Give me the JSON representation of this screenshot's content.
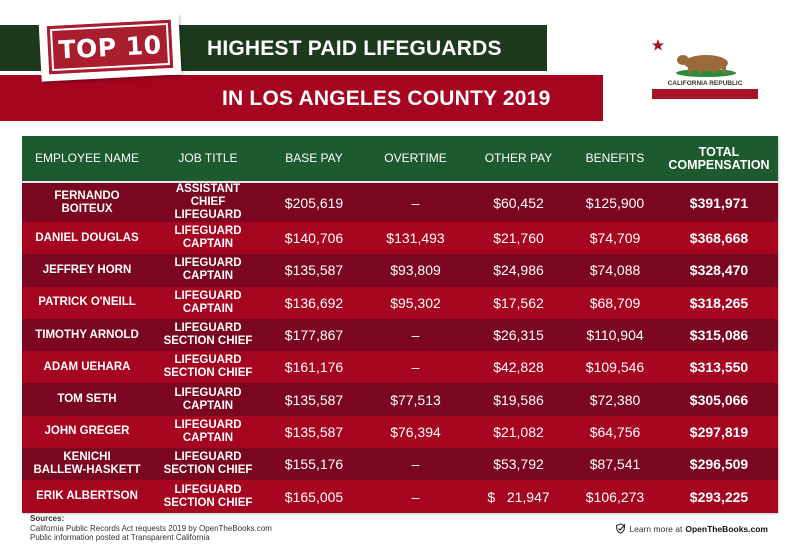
{
  "header": {
    "badge": "TOP 10",
    "title_line1": "HIGHEST PAID LIFEGUARDS",
    "title_line2": "IN LOS ANGELES COUNTY 2019",
    "flag_text": "CALIFORNIA REPUBLIC",
    "flag_icon": "california-flag-icon"
  },
  "colors": {
    "green_banner": "#1d3a1f",
    "red_banner": "#a5051f",
    "table_header": "#1d5b2f",
    "row_dark": "#7a0620",
    "row_light": "#a5051f"
  },
  "table": {
    "columns": [
      "EMPLOYEE NAME",
      "JOB TITLE",
      "BASE PAY",
      "OVERTIME",
      "OTHER PAY",
      "BENEFITS",
      "TOTAL\nCOMPENSATION"
    ],
    "columns_total_line1": "TOTAL",
    "columns_total_line2": "COMPENSATION",
    "rows": [
      {
        "name1": "FERNANDO",
        "name2": "BOITEUX",
        "job1": "ASSISTANT",
        "job2": "CHIEF LIFEGUARD",
        "base": "$205,619",
        "overtime": "–",
        "other": "$60,452",
        "benefits": "$125,900",
        "total": "$391,971"
      },
      {
        "name1": "DANIEL DOUGLAS",
        "name2": "",
        "job1": "LIFEGUARD CAPTAIN",
        "job2": "",
        "base": "$140,706",
        "overtime": "$131,493",
        "other": "$21,760",
        "benefits": "$74,709",
        "total": "$368,668"
      },
      {
        "name1": "JEFFREY HORN",
        "name2": "",
        "job1": "LIFEGUARD CAPTAIN",
        "job2": "",
        "base": "$135,587",
        "overtime": "$93,809",
        "other": "$24,986",
        "benefits": "$74,088",
        "total": "$328,470"
      },
      {
        "name1": "PATRICK O'NEILL",
        "name2": "",
        "job1": "LIFEGUARD CAPTAIN",
        "job2": "",
        "base": "$136,692",
        "overtime": "$95,302",
        "other": "$17,562",
        "benefits": "$68,709",
        "total": "$318,265"
      },
      {
        "name1": "TIMOTHY ARNOLD",
        "name2": "",
        "job1": "LIFEGUARD",
        "job2": "SECTION CHIEF",
        "base": "$177,867",
        "overtime": "–",
        "other": "$26,315",
        "benefits": "$110,904",
        "total": "$315,086"
      },
      {
        "name1": "ADAM UEHARA",
        "name2": "",
        "job1": "LIFEGUARD",
        "job2": "SECTION CHIEF",
        "base": "$161,176",
        "overtime": "–",
        "other": "$42,828",
        "benefits": "$109,546",
        "total": "$313,550"
      },
      {
        "name1": "TOM SETH",
        "name2": "",
        "job1": "LIFEGUARD CAPTAIN",
        "job2": "",
        "base": "$135,587",
        "overtime": "$77,513",
        "other": "$19,586",
        "benefits": "$72,380",
        "total": "$305,066"
      },
      {
        "name1": "JOHN GREGER",
        "name2": "",
        "job1": "LIFEGUARD CAPTAIN",
        "job2": "",
        "base": "$135,587",
        "overtime": "$76,394",
        "other": "$21,082",
        "benefits": "$64,756",
        "total": "$297,819"
      },
      {
        "name1": "KENICHI",
        "name2": "BALLEW-HASKETT",
        "job1": "LIFEGUARD",
        "job2": "SECTION CHIEF",
        "base": "$155,176",
        "overtime": "–",
        "other": "$53,792",
        "benefits": "$87,541",
        "total": "$296,509"
      },
      {
        "name1": "ERIK ALBERTSON",
        "name2": "",
        "job1": "LIFEGUARD",
        "job2": "SECTION CHIEF",
        "base": "$165,005",
        "overtime": "–",
        "other": "$   21,947",
        "benefits": "$106,273",
        "total": "$293,225"
      }
    ]
  },
  "footer": {
    "sources_label": "Sources:",
    "source1": "California Public Records Act requests 2019 by OpenTheBooks.com",
    "source2": "Public information posted at Transparent California",
    "learn_prefix": "Learn more at",
    "learn_brand": "OpenTheBooks.com",
    "learn_icon": "checkmark-shield-icon"
  }
}
